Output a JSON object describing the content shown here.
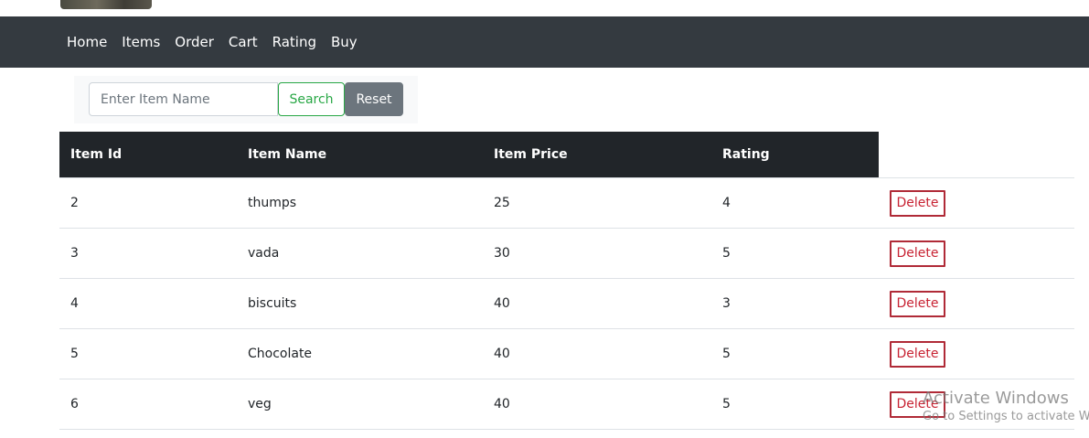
{
  "nav": {
    "items": [
      "Home",
      "Items",
      "Order",
      "Cart",
      "Rating",
      "Buy"
    ]
  },
  "search": {
    "placeholder": "Enter Item Name",
    "value": "",
    "search_label": "Search",
    "reset_label": "Reset"
  },
  "table": {
    "headers": [
      "Item Id",
      "Item Name",
      "Item Price",
      "Rating"
    ],
    "rows": [
      {
        "id": "2",
        "name": "thumps",
        "price": "25",
        "rating": "4",
        "action": "Delete"
      },
      {
        "id": "3",
        "name": "vada",
        "price": "30",
        "rating": "5",
        "action": "Delete"
      },
      {
        "id": "4",
        "name": "biscuits",
        "price": "40",
        "rating": "3",
        "action": "Delete"
      },
      {
        "id": "5",
        "name": "Chocolate",
        "price": "40",
        "rating": "5",
        "action": "Delete"
      },
      {
        "id": "6",
        "name": "veg",
        "price": "40",
        "rating": "5",
        "action": "Delete"
      }
    ]
  },
  "watermark": {
    "title": "Activate Windows",
    "subtitle": "Go to Settings to activate Windows."
  },
  "colors": {
    "navbar": "#343a40",
    "table_header": "#212529",
    "search_accent": "#28a745",
    "reset": "#6c757d",
    "delete": "#c82333"
  }
}
